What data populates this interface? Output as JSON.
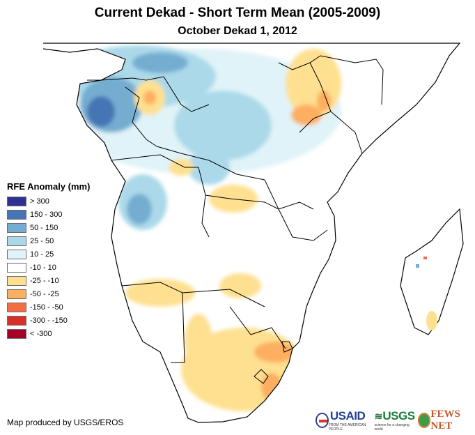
{
  "title": "Current Dekad - Short Term Mean (2005-2009)",
  "subtitle": "October Dekad 1, 2012",
  "legend": {
    "title": "RFE Anomaly (mm)",
    "items": [
      {
        "label": "> 300",
        "color": "#2e3192"
      },
      {
        "label": "150 - 300",
        "color": "#4575b4"
      },
      {
        "label": "50 - 150",
        "color": "#74add1"
      },
      {
        "label": "25 - 50",
        "color": "#abd9e9"
      },
      {
        "label": "10 - 25",
        "color": "#e0f3f8"
      },
      {
        "label": "-10 - 10",
        "color": "#ffffff"
      },
      {
        "label": "-25 - -10",
        "color": "#fee090"
      },
      {
        "label": "-50 - -25",
        "color": "#fdae61"
      },
      {
        "label": "-150 - -50",
        "color": "#f46d43"
      },
      {
        "label": "-300 - -150",
        "color": "#d73027"
      },
      {
        "label": "< -300",
        "color": "#a50026"
      }
    ]
  },
  "credit": "Map produced by USGS/EROS",
  "logos": {
    "usaid": "USAID",
    "usaid_tagline": "FROM THE AMERICAN PEOPLE",
    "usgs": "USGS",
    "usgs_tagline": "science for a changing world",
    "fews": "FEWS NET"
  },
  "map_regions": [
    {
      "name": "west-central-africa-wet",
      "class": "50 - 150"
    },
    {
      "name": "gabon-congo-wet",
      "class": "150 - 300"
    },
    {
      "name": "drc-moderate-wet",
      "class": "25 - 50"
    },
    {
      "name": "angola-wet",
      "class": "50 - 150"
    },
    {
      "name": "uganda-kenya-dry",
      "class": "-25 - -10"
    },
    {
      "name": "east-africa-dry-core",
      "class": "-50 - -25"
    },
    {
      "name": "southern-africa-dry",
      "class": "-25 - -10"
    },
    {
      "name": "south-africa-east-dry",
      "class": "-50 - -25"
    },
    {
      "name": "madagascar",
      "class": "-10 - 10"
    }
  ]
}
